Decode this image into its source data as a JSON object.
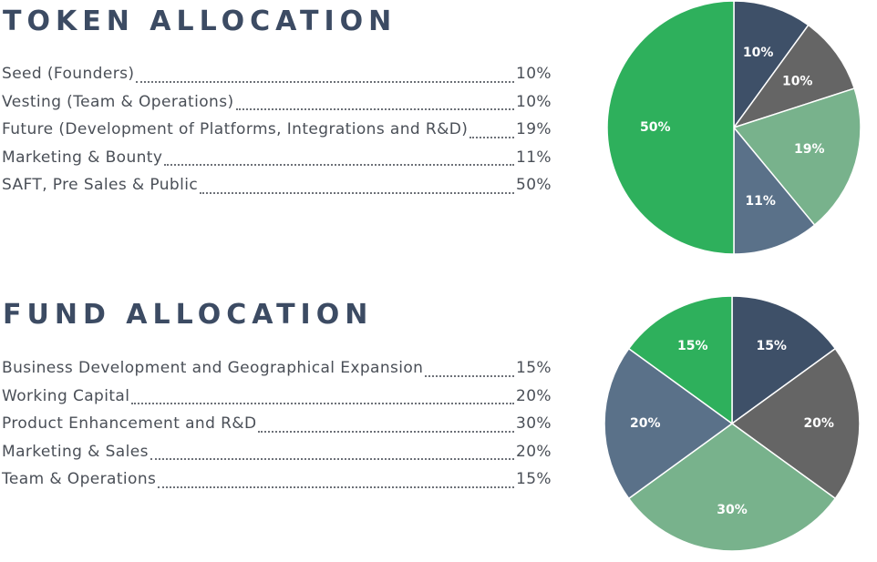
{
  "token_allocation": {
    "title": "TOKEN ALLOCATION",
    "items": [
      {
        "label": "Seed (Founders)",
        "value": "10%"
      },
      {
        "label": "Vesting (Team & Operations)",
        "value": "10%"
      },
      {
        "label": "Future (Development of Platforms, Integrations and R&D)",
        "value": "19%"
      },
      {
        "label": "Marketing & Bounty",
        "value": "11%"
      },
      {
        "label": "SAFT, Pre Sales & Public",
        "value": "50%"
      }
    ]
  },
  "fund_allocation": {
    "title": "FUND ALLOCATION",
    "items": [
      {
        "label": "Business Development and Geographical Expansion",
        "value": "15%"
      },
      {
        "label": "Working Capital",
        "value": "20%"
      },
      {
        "label": "Product Enhancement and R&D",
        "value": "30%"
      },
      {
        "label": "Marketing & Sales",
        "value": "20%"
      },
      {
        "label": "Team & Operations",
        "value": "15%"
      }
    ]
  },
  "chart_data": [
    {
      "type": "pie",
      "title": "",
      "slices": [
        {
          "value": 10,
          "label": "10%",
          "color": "#3e5068"
        },
        {
          "value": 10,
          "label": "10%",
          "color": "#656565"
        },
        {
          "value": 19,
          "label": "19%",
          "color": "#78b28c"
        },
        {
          "value": 11,
          "label": "11%",
          "color": "#5a7189"
        },
        {
          "value": 50,
          "label": "50%",
          "color": "#2eb05c"
        }
      ],
      "start": "12 o'clock",
      "direction": "clockwise"
    },
    {
      "type": "pie",
      "title": "",
      "slices": [
        {
          "value": 15,
          "label": "15%",
          "color": "#3e5068"
        },
        {
          "value": 20,
          "label": "20%",
          "color": "#656565"
        },
        {
          "value": 30,
          "label": "30%",
          "color": "#78b28c"
        },
        {
          "value": 20,
          "label": "20%",
          "color": "#5a7189"
        },
        {
          "value": 15,
          "label": "15%",
          "color": "#2eb05c"
        }
      ],
      "start": "12 o'clock",
      "direction": "clockwise"
    }
  ]
}
